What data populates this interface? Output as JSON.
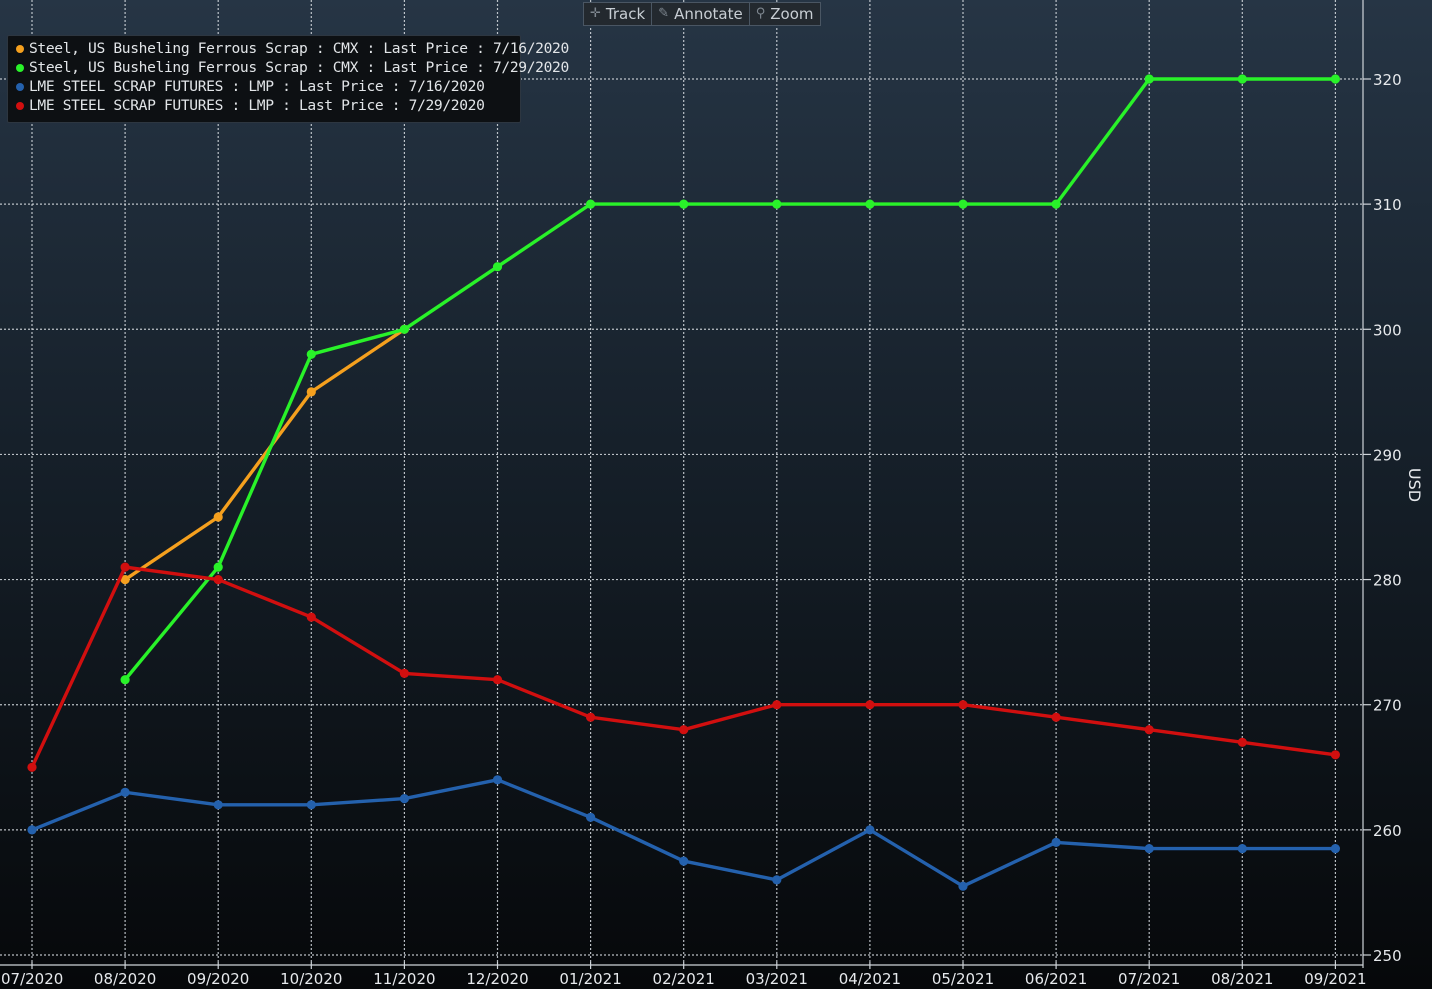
{
  "toolbar": {
    "track_label": "Track",
    "annotate_label": "Annotate",
    "zoom_label": "Zoom",
    "track_icon": "crosshair-icon",
    "annotate_icon": "pencil-icon",
    "zoom_icon": "magnifier-icon"
  },
  "colors": {
    "orange": "#f5a01e",
    "green": "#29f229",
    "blue": "#2461ad",
    "red": "#d10f0f",
    "grid": "#d8dde2",
    "background_top": "#263545",
    "background_bottom": "#06080a"
  },
  "chart_data": {
    "type": "line",
    "title": "",
    "xlabel": "",
    "ylabel": "USD",
    "ylim": [
      250,
      320
    ],
    "yticks": [
      250,
      260,
      270,
      280,
      290,
      300,
      310,
      320
    ],
    "grid": true,
    "legend_position": "top-left",
    "categories": [
      "07/2020",
      "08/2020",
      "09/2020",
      "10/2020",
      "11/2020",
      "12/2020",
      "01/2021",
      "02/2021",
      "03/2021",
      "04/2021",
      "05/2021",
      "06/2021",
      "07/2021",
      "08/2021",
      "09/2021"
    ],
    "series": [
      {
        "name": "Steel, US Busheling Ferrous Scrap : CMX : Last Price : 7/16/2020",
        "color": "#f5a01e",
        "values": [
          null,
          280,
          285,
          295,
          300,
          null,
          null,
          null,
          null,
          null,
          null,
          null,
          null,
          null,
          null
        ]
      },
      {
        "name": "Steel, US Busheling Ferrous Scrap : CMX : Last Price : 7/29/2020",
        "color": "#29f229",
        "values": [
          null,
          272,
          281,
          298,
          300,
          305,
          310,
          310,
          310,
          310,
          310,
          310,
          320,
          320,
          320
        ]
      },
      {
        "name": "LME STEEL SCRAP FUTURES : LMP : Last Price : 7/16/2020",
        "color": "#2461ad",
        "values": [
          260,
          263,
          262,
          262,
          262.5,
          264,
          261,
          257.5,
          256,
          260,
          255.5,
          259,
          258.5,
          258.5,
          258.5
        ]
      },
      {
        "name": "LME STEEL SCRAP FUTURES : LMP : Last Price : 7/29/2020",
        "color": "#d10f0f",
        "values": [
          265,
          281,
          280,
          277,
          272.5,
          272,
          269,
          268,
          270,
          270,
          270,
          269,
          268,
          267,
          266
        ]
      }
    ]
  }
}
